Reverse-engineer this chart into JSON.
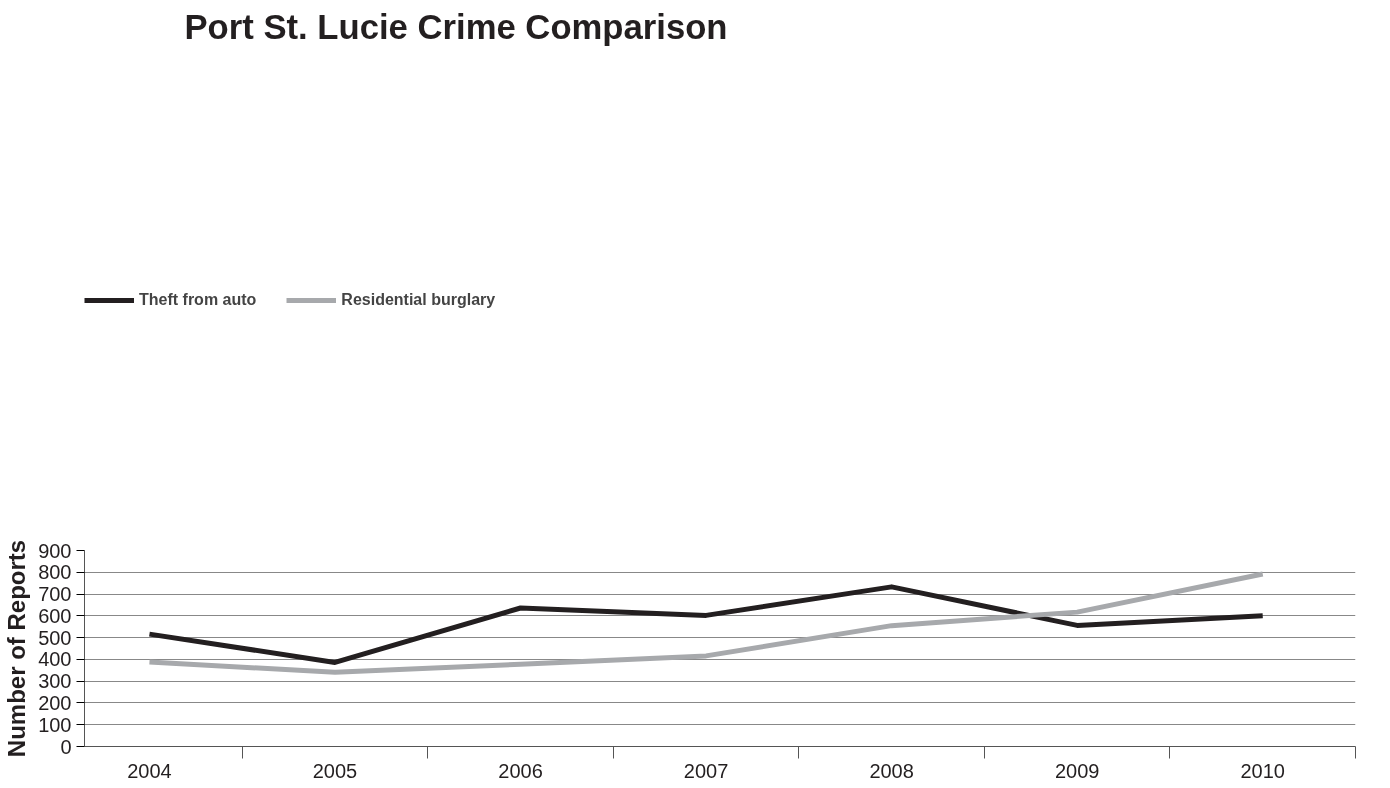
{
  "chart_data": {
    "type": "line",
    "title": "Port St. Lucie Crime Comparison",
    "ylabel": "Number of Reports",
    "categories": [
      "2004",
      "2005",
      "2006",
      "2007",
      "2008",
      "2009",
      "2010"
    ],
    "series": [
      {
        "name": "Theft from auto",
        "color": "#231f20",
        "values": [
          516,
          386,
          636,
          602,
          733,
          556,
          600
        ]
      },
      {
        "name": "Residential burglary",
        "color": "#a7a9ac",
        "values": [
          388,
          341,
          378,
          416,
          555,
          617,
          792
        ]
      }
    ],
    "ylim": [
      0,
      900
    ],
    "yticks": [
      0,
      100,
      200,
      300,
      400,
      500,
      600,
      700,
      800,
      900
    ],
    "grid": "y",
    "legend": "top left",
    "marker": "none",
    "line_style": "solid"
  }
}
